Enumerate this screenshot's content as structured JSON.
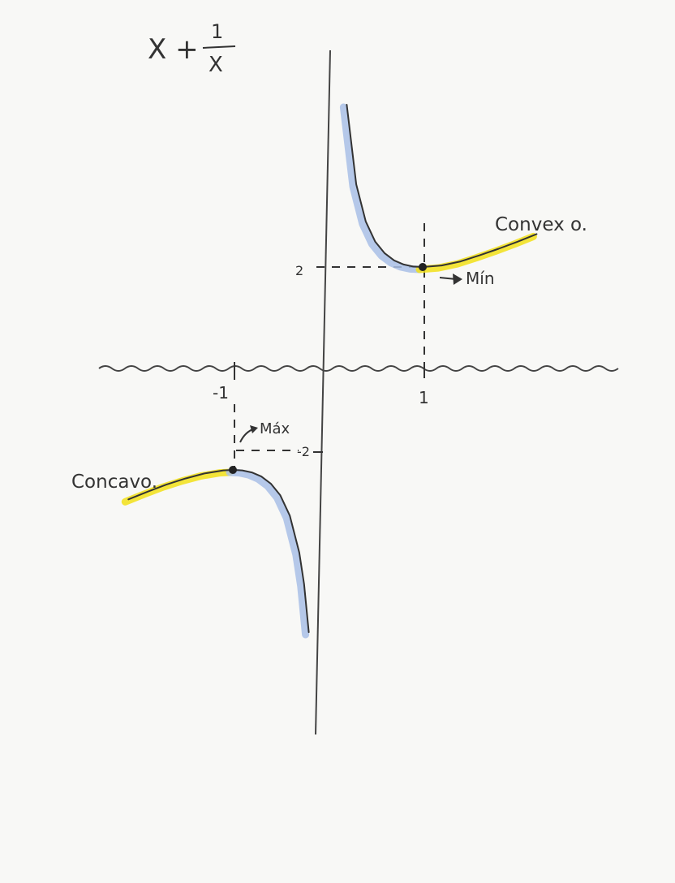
{
  "chart_data": {
    "type": "line",
    "title": "X + 1/X",
    "title_parts": {
      "lead": "X +",
      "numerator": "1",
      "denominator": "X"
    },
    "function": "x + 1/x",
    "x_range": [
      -2.1,
      2.1
    ],
    "xticks": [
      {
        "value": -1,
        "label": "-1"
      },
      {
        "value": 1,
        "label": "1"
      }
    ],
    "yticks": [
      {
        "value": 2,
        "label": "2"
      },
      {
        "value": -2,
        "label": "-2"
      }
    ],
    "series": [
      {
        "x": [
          0.2,
          0.3,
          0.4,
          0.5,
          0.6,
          0.7,
          0.8,
          0.9,
          1.0
        ],
        "y": [
          5.2,
          3.63,
          2.9,
          2.5,
          2.27,
          2.13,
          2.05,
          2.01,
          2.0
        ],
        "color": "#333333",
        "highlight": "#a9bfe6"
      },
      {
        "x": [
          1.0,
          1.2,
          1.4,
          1.6,
          1.8,
          2.0,
          2.2
        ],
        "y": [
          2.0,
          2.03,
          2.11,
          2.23,
          2.36,
          2.5,
          2.65
        ],
        "color": "#333333",
        "highlight": "#f2e018"
      },
      {
        "x": [
          -2.1,
          -1.9,
          -1.7,
          -1.5,
          -1.3,
          -1.1,
          -1.0
        ],
        "y": [
          -2.58,
          -2.43,
          -2.29,
          -2.17,
          -2.07,
          -2.01,
          -2.0
        ],
        "color": "#333333",
        "highlight": "#f2e018"
      },
      {
        "x": [
          -1.0,
          -0.9,
          -0.8,
          -0.7,
          -0.6,
          -0.5,
          -0.4,
          -0.3,
          -0.25,
          -0.2
        ],
        "y": [
          -2.0,
          -2.01,
          -2.05,
          -2.13,
          -2.27,
          -2.5,
          -2.9,
          -3.63,
          -4.25,
          -5.2
        ],
        "color": "#333333",
        "highlight": "#a9bfe6"
      }
    ],
    "points": [
      {
        "x": 1,
        "y": 2,
        "label": "Mín"
      },
      {
        "x": -1,
        "y": -2,
        "label": "Máx"
      }
    ],
    "annotations": [
      {
        "text": "Convex o.",
        "near": "right branch"
      },
      {
        "text": "Concavo.",
        "near": "left branch"
      }
    ],
    "grid": false,
    "legend": "none",
    "colors": {
      "ink": "#333333",
      "blue_pencil": "#a9bfe6",
      "yellow_pencil": "#f2e018"
    }
  }
}
